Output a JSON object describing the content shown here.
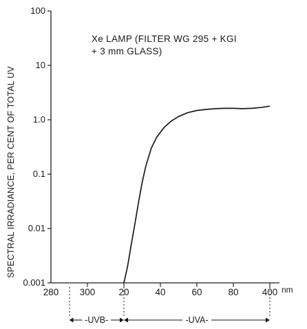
{
  "chart_data": {
    "type": "line",
    "ylabel": "SPECTRAL IRRADIANCE, PER CENT OF TOTAL UV",
    "x_unit": "nm",
    "xlim": [
      280,
      400
    ],
    "ylim": [
      0.001,
      100
    ],
    "yscale": "log",
    "y_ticks": [
      {
        "value": 100,
        "label": "100"
      },
      {
        "value": 10,
        "label": "10"
      },
      {
        "value": 1,
        "label": "1.0"
      },
      {
        "value": 0.1,
        "label": "0.1"
      },
      {
        "value": 0.01,
        "label": "0.01"
      },
      {
        "value": 0.001,
        "label": "0.001"
      }
    ],
    "x_ticks": [
      {
        "value": 280,
        "label": "280"
      },
      {
        "value": 300,
        "label": "300"
      },
      {
        "value": 320,
        "label": "20"
      },
      {
        "value": 340,
        "label": "40"
      },
      {
        "value": 360,
        "label": "60"
      },
      {
        "value": 380,
        "label": "80"
      },
      {
        "value": 400,
        "label": "400"
      }
    ],
    "annotation": [
      "Xe LAMP (FILTER WG 295 + KGI",
      "+ 3 mm GLASS)"
    ],
    "bands": [
      {
        "label": "UVB",
        "from": 290,
        "to": 320
      },
      {
        "label": "UVA",
        "from": 320,
        "to": 400
      }
    ],
    "series": [
      {
        "x": [
          320,
          322,
          324,
          326,
          328,
          330,
          332,
          335,
          338,
          342,
          346,
          350,
          355,
          360,
          365,
          370,
          375,
          380,
          385,
          390,
          395,
          400
        ],
        "y": [
          0.001,
          0.002,
          0.005,
          0.012,
          0.03,
          0.07,
          0.14,
          0.3,
          0.48,
          0.72,
          0.95,
          1.15,
          1.35,
          1.48,
          1.55,
          1.6,
          1.62,
          1.62,
          1.6,
          1.62,
          1.68,
          1.78
        ]
      }
    ]
  }
}
